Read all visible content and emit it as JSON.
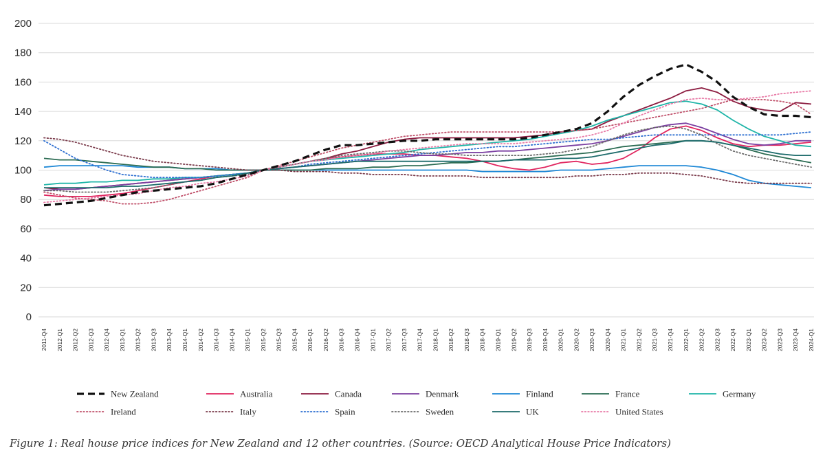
{
  "caption": "Figure 1: Real house price indices for New Zealand and 12 other countries. (Source: OECD Analytical House Price Indicators)",
  "chart_data": {
    "type": "line",
    "title": "",
    "xlabel": "",
    "ylabel": "",
    "ylim": [
      0,
      200
    ],
    "yticks": [
      0,
      20,
      40,
      60,
      80,
      100,
      120,
      140,
      160,
      180,
      200
    ],
    "grid": true,
    "legend_position": "bottom",
    "categories": [
      "2011-Q4",
      "2012-Q1",
      "2012-Q2",
      "2012-Q3",
      "2012-Q4",
      "2013-Q1",
      "2013-Q2",
      "2013-Q3",
      "2013-Q4",
      "2014-Q1",
      "2014-Q2",
      "2014-Q3",
      "2014-Q4",
      "2015-Q1",
      "2015-Q2",
      "2015-Q3",
      "2015-Q4",
      "2016-Q1",
      "2016-Q2",
      "2016-Q3",
      "2016-Q4",
      "2017-Q1",
      "2017-Q2",
      "2017-Q3",
      "2017-Q4",
      "2018-Q1",
      "2018-Q2",
      "2018-Q3",
      "2018-Q4",
      "2019-Q1",
      "2019-Q2",
      "2019-Q3",
      "2019-Q4",
      "2020-Q1",
      "2020-Q2",
      "2020-Q3",
      "2020-Q4",
      "2021-Q1",
      "2021-Q2",
      "2021-Q3",
      "2021-Q4",
      "2022-Q1",
      "2022-Q2",
      "2022-Q3",
      "2022-Q4",
      "2023-Q1",
      "2023-Q2",
      "2023-Q3",
      "2023-Q4",
      "2024-Q1"
    ],
    "series": [
      {
        "name": "New Zealand",
        "color": "#111111",
        "style": "dash-bold",
        "values": [
          76,
          77,
          78,
          79,
          81,
          83,
          85,
          86,
          87,
          88,
          89,
          91,
          94,
          97,
          100,
          103,
          106,
          110,
          114,
          117,
          117,
          118,
          119,
          120,
          120,
          121,
          121,
          121,
          121,
          121,
          121,
          122,
          124,
          126,
          128,
          132,
          140,
          150,
          158,
          164,
          169,
          172,
          167,
          160,
          150,
          143,
          138,
          137,
          137,
          136
        ]
      },
      {
        "name": "Australia",
        "color": "#e0245e",
        "style": "solid",
        "values": [
          83,
          82,
          82,
          82,
          83,
          84,
          86,
          88,
          90,
          92,
          94,
          96,
          97,
          98,
          100,
          102,
          104,
          106,
          108,
          109,
          110,
          111,
          111,
          111,
          110,
          110,
          109,
          108,
          106,
          103,
          101,
          100,
          102,
          105,
          106,
          104,
          105,
          108,
          114,
          122,
          128,
          130,
          127,
          122,
          118,
          116,
          117,
          117,
          118,
          119
        ]
      },
      {
        "name": "Canada",
        "color": "#8c1c40",
        "style": "solid",
        "values": [
          88,
          87,
          87,
          88,
          89,
          90,
          91,
          92,
          93,
          94,
          95,
          96,
          97,
          98,
          100,
          102,
          104,
          106,
          108,
          111,
          113,
          116,
          119,
          121,
          122,
          122,
          122,
          122,
          122,
          122,
          122,
          123,
          124,
          126,
          127,
          128,
          133,
          137,
          141,
          145,
          149,
          154,
          156,
          153,
          147,
          143,
          141,
          140,
          146,
          145
        ]
      },
      {
        "name": "Denmark",
        "color": "#7b3fa1",
        "style": "solid",
        "values": [
          86,
          87,
          87,
          88,
          89,
          90,
          91,
          92,
          93,
          94,
          95,
          96,
          97,
          98,
          100,
          101,
          102,
          103,
          104,
          105,
          106,
          107,
          108,
          109,
          110,
          110,
          111,
          112,
          112,
          113,
          113,
          114,
          115,
          116,
          117,
          118,
          120,
          123,
          126,
          129,
          131,
          132,
          129,
          125,
          121,
          118,
          117,
          118,
          120,
          120
        ]
      },
      {
        "name": "Finland",
        "color": "#1e88d6",
        "style": "solid",
        "values": [
          102,
          103,
          103,
          103,
          103,
          103,
          102,
          102,
          102,
          101,
          101,
          101,
          100,
          100,
          100,
          100,
          100,
          100,
          100,
          100,
          100,
          100,
          100,
          100,
          100,
          100,
          100,
          100,
          99,
          99,
          99,
          99,
          99,
          100,
          100,
          100,
          101,
          102,
          103,
          103,
          103,
          103,
          102,
          100,
          97,
          93,
          91,
          90,
          89,
          88
        ]
      },
      {
        "name": "France",
        "color": "#2a6b52",
        "style": "solid",
        "values": [
          108,
          107,
          107,
          106,
          105,
          104,
          103,
          102,
          102,
          101,
          101,
          100,
          100,
          100,
          100,
          100,
          100,
          100,
          101,
          101,
          101,
          102,
          102,
          103,
          103,
          104,
          105,
          105,
          106,
          106,
          107,
          108,
          109,
          110,
          111,
          112,
          114,
          116,
          117,
          118,
          119,
          120,
          120,
          119,
          117,
          114,
          111,
          109,
          107,
          105
        ]
      },
      {
        "name": "Germany",
        "color": "#1fb5a8",
        "style": "solid",
        "values": [
          90,
          91,
          91,
          92,
          92,
          93,
          93,
          94,
          94,
          95,
          95,
          96,
          97,
          98,
          100,
          102,
          104,
          106,
          107,
          108,
          109,
          110,
          111,
          112,
          114,
          115,
          116,
          117,
          118,
          119,
          120,
          121,
          123,
          125,
          127,
          130,
          134,
          137,
          140,
          143,
          146,
          147,
          145,
          141,
          134,
          128,
          123,
          120,
          117,
          116
        ]
      },
      {
        "name": "Ireland",
        "color": "#c0506a",
        "style": "dot",
        "values": [
          85,
          83,
          81,
          80,
          79,
          77,
          77,
          78,
          80,
          83,
          86,
          89,
          92,
          95,
          100,
          103,
          106,
          109,
          112,
          115,
          117,
          119,
          121,
          123,
          124,
          125,
          126,
          126,
          126,
          126,
          126,
          126,
          126,
          126,
          127,
          128,
          130,
          132,
          134,
          136,
          138,
          140,
          142,
          145,
          148,
          148,
          148,
          147,
          145,
          138
        ]
      },
      {
        "name": "Italy",
        "color": "#7a3a4a",
        "style": "dot",
        "values": [
          122,
          121,
          119,
          116,
          113,
          110,
          108,
          106,
          105,
          104,
          103,
          102,
          101,
          100,
          100,
          100,
          99,
          99,
          99,
          98,
          98,
          97,
          97,
          97,
          96,
          96,
          96,
          96,
          95,
          95,
          95,
          95,
          95,
          95,
          96,
          96,
          97,
          97,
          98,
          98,
          98,
          97,
          96,
          94,
          92,
          91,
          91,
          91,
          91,
          91
        ]
      },
      {
        "name": "Spain",
        "color": "#2d6fd1",
        "style": "dot",
        "values": [
          120,
          114,
          108,
          104,
          100,
          97,
          96,
          95,
          95,
          95,
          95,
          96,
          97,
          98,
          100,
          101,
          102,
          104,
          105,
          106,
          107,
          108,
          109,
          110,
          111,
          112,
          113,
          114,
          115,
          116,
          116,
          117,
          118,
          119,
          120,
          121,
          121,
          122,
          123,
          124,
          124,
          124,
          124,
          124,
          124,
          124,
          124,
          124,
          125,
          126
        ]
      },
      {
        "name": "Sweden",
        "color": "#6a6a6a",
        "style": "dot",
        "values": [
          86,
          86,
          85,
          85,
          85,
          86,
          87,
          88,
          90,
          92,
          93,
          95,
          96,
          97,
          100,
          102,
          104,
          106,
          108,
          110,
          111,
          112,
          113,
          113,
          112,
          111,
          111,
          110,
          110,
          110,
          110,
          110,
          111,
          112,
          114,
          116,
          120,
          124,
          127,
          129,
          130,
          128,
          124,
          118,
          113,
          110,
          108,
          106,
          104,
          102
        ]
      },
      {
        "name": "UK",
        "color": "#1b6a6a",
        "style": "solid",
        "values": [
          88,
          88,
          88,
          88,
          88,
          89,
          89,
          90,
          91,
          92,
          93,
          95,
          96,
          98,
          100,
          101,
          102,
          103,
          104,
          105,
          106,
          106,
          106,
          106,
          106,
          106,
          106,
          106,
          106,
          106,
          107,
          107,
          107,
          108,
          108,
          109,
          111,
          113,
          115,
          117,
          118,
          120,
          120,
          119,
          117,
          115,
          113,
          111,
          110,
          110
        ]
      },
      {
        "name": "United States",
        "color": "#e87aa6",
        "style": "dot",
        "values": [
          78,
          79,
          80,
          81,
          82,
          83,
          84,
          86,
          88,
          89,
          91,
          92,
          94,
          96,
          100,
          102,
          104,
          106,
          107,
          109,
          110,
          111,
          113,
          114,
          115,
          116,
          117,
          118,
          118,
          118,
          118,
          119,
          120,
          121,
          122,
          124,
          127,
          132,
          137,
          141,
          145,
          148,
          149,
          148,
          148,
          149,
          150,
          152,
          153,
          154
        ]
      }
    ]
  }
}
